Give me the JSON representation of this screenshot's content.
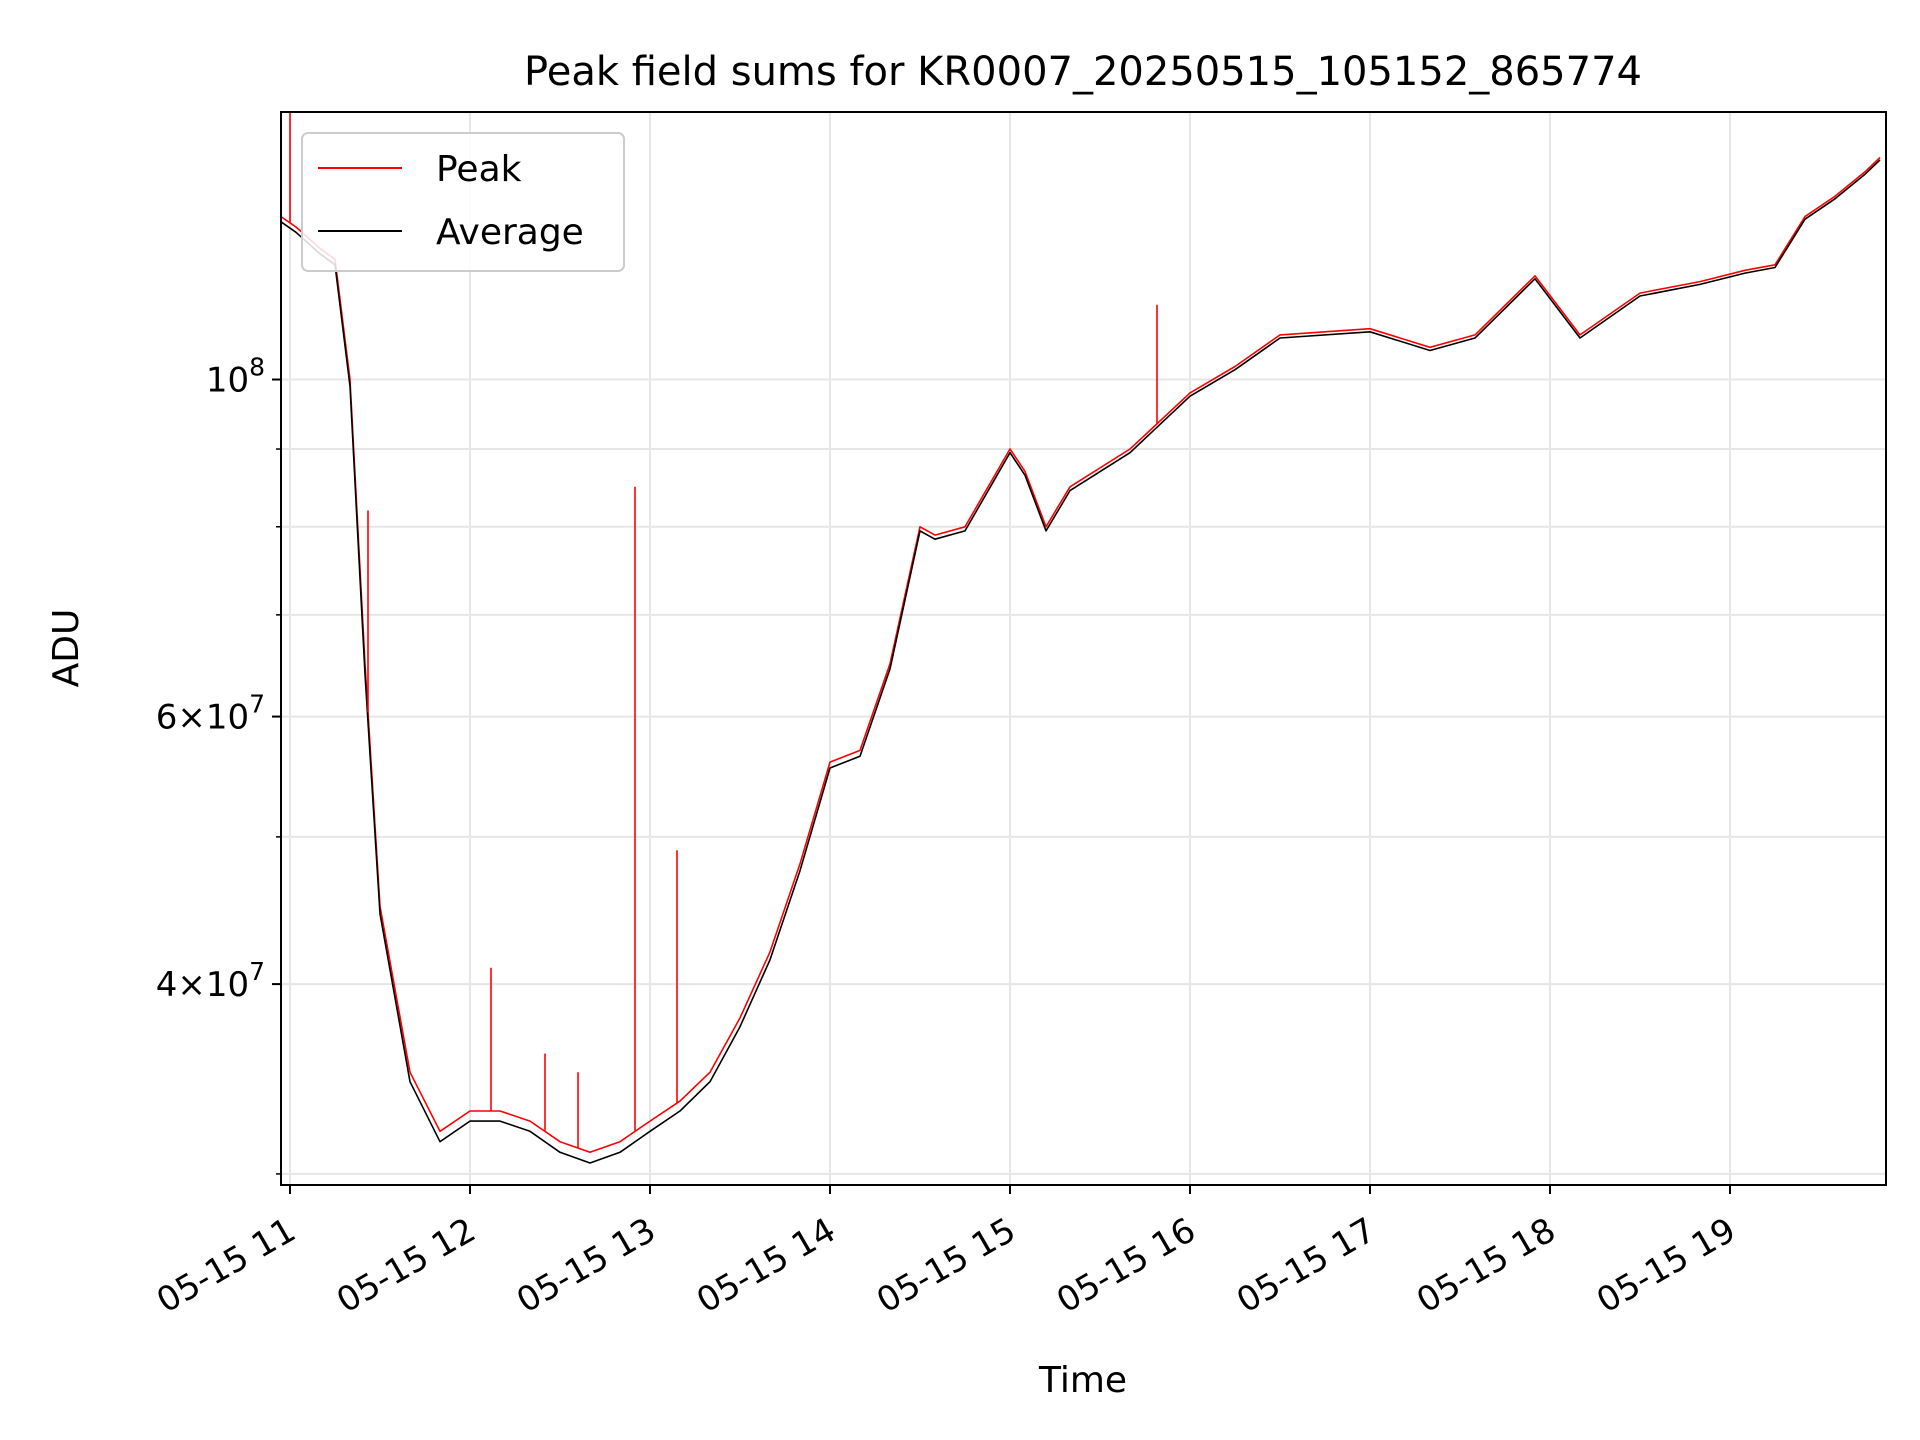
{
  "chart_data": {
    "type": "line",
    "title": "Peak field sums for KR0007_20250515_105152_865774",
    "xlabel": "Time",
    "ylabel": "ADU",
    "yscale": "log",
    "ylim": [
      29500000,
      150000000
    ],
    "xlim": [
      "2025-05-15 10:57",
      "2025-05-15 19:52"
    ],
    "grid": true,
    "legend": "upper-left",
    "x_ticks": [
      "05-15 11",
      "05-15 12",
      "05-15 13",
      "05-15 14",
      "05-15 15",
      "05-15 16",
      "05-15 17",
      "05-15 18",
      "05-15 19"
    ],
    "y_ticks": [
      {
        "value": 40000000,
        "mant": "4",
        "exp": "7"
      },
      {
        "value": 60000000,
        "mant": "6",
        "exp": "7"
      },
      {
        "value": 100000000,
        "mant": "10",
        "exp": "8"
      }
    ],
    "x": [
      "2025-05-15 10:57",
      "2025-05-15 11:02",
      "2025-05-15 11:10",
      "2025-05-15 11:15",
      "2025-05-15 11:20",
      "2025-05-15 11:25",
      "2025-05-15 11:30",
      "2025-05-15 11:40",
      "2025-05-15 11:50",
      "2025-05-15 12:00",
      "2025-05-15 12:10",
      "2025-05-15 12:20",
      "2025-05-15 12:30",
      "2025-05-15 12:40",
      "2025-05-15 12:50",
      "2025-05-15 13:00",
      "2025-05-15 13:10",
      "2025-05-15 13:20",
      "2025-05-15 13:30",
      "2025-05-15 13:40",
      "2025-05-15 13:50",
      "2025-05-15 14:00",
      "2025-05-15 14:10",
      "2025-05-15 14:20",
      "2025-05-15 14:30",
      "2025-05-15 14:35",
      "2025-05-15 14:45",
      "2025-05-15 15:00",
      "2025-05-15 15:05",
      "2025-05-15 15:12",
      "2025-05-15 15:20",
      "2025-05-15 15:40",
      "2025-05-15 16:00",
      "2025-05-15 16:15",
      "2025-05-15 16:30",
      "2025-05-15 17:00",
      "2025-05-15 17:20",
      "2025-05-15 17:35",
      "2025-05-15 17:55",
      "2025-05-15 18:10",
      "2025-05-15 18:30",
      "2025-05-15 18:50",
      "2025-05-15 19:05",
      "2025-05-15 19:15",
      "2025-05-15 19:25",
      "2025-05-15 19:35",
      "2025-05-15 19:45",
      "2025-05-15 19:50"
    ],
    "series": [
      {
        "name": "Peak",
        "color": "#ff0000",
        "values": [
          128000000,
          126000000,
          122000000,
          120000000,
          100000000,
          65000000,
          45000000,
          35000000,
          32000000,
          33000000,
          33000000,
          32500000,
          31500000,
          31000000,
          31500000,
          32500000,
          33500000,
          35000000,
          38000000,
          42000000,
          48000000,
          56000000,
          57000000,
          65000000,
          80000000,
          79000000,
          80000000,
          90000000,
          87000000,
          80000000,
          85000000,
          90000000,
          98000000,
          102000000,
          107000000,
          108000000,
          105000000,
          107000000,
          117000000,
          107000000,
          114000000,
          116000000,
          118000000,
          119000000,
          128000000,
          132000000,
          137000000,
          140000000
        ]
      },
      {
        "name": "Average",
        "color": "#000000",
        "values": [
          127000000,
          125000000,
          121000000,
          119000000,
          99000000,
          64000000,
          44500000,
          34500000,
          31500000,
          32500000,
          32500000,
          32000000,
          31000000,
          30500000,
          31000000,
          32000000,
          33000000,
          34500000,
          37500000,
          41500000,
          47500000,
          55500000,
          56500000,
          64500000,
          79500000,
          78500000,
          79500000,
          89500000,
          86500000,
          79500000,
          84500000,
          89500000,
          97500000,
          101500000,
          106500000,
          107500000,
          104500000,
          106500000,
          116500000,
          106500000,
          113500000,
          115500000,
          117500000,
          118500000,
          127500000,
          131500000,
          136500000,
          139500000
        ]
      }
    ],
    "peak_spikes": [
      {
        "x": "2025-05-15 11:00",
        "value": 150000000
      },
      {
        "x": "2025-05-15 11:26",
        "value": 82000000
      },
      {
        "x": "2025-05-15 12:07",
        "value": 41000000
      },
      {
        "x": "2025-05-15 12:25",
        "value": 36000000
      },
      {
        "x": "2025-05-15 12:36",
        "value": 35000000
      },
      {
        "x": "2025-05-15 12:55",
        "value": 85000000
      },
      {
        "x": "2025-05-15 13:09",
        "value": 49000000
      },
      {
        "x": "2025-05-15 15:49",
        "value": 112000000
      }
    ]
  }
}
